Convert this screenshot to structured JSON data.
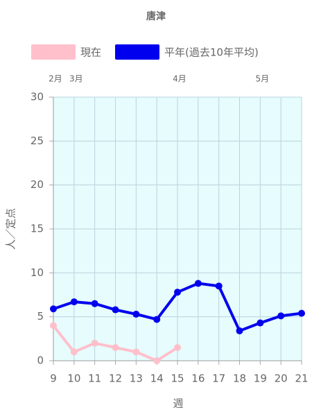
{
  "chart_data": {
    "type": "line",
    "title": "唐津",
    "x": [
      9,
      10,
      11,
      12,
      13,
      14,
      15,
      16,
      17,
      18,
      19,
      20,
      21
    ],
    "series": [
      {
        "name": "現在",
        "color": "#ffc0cb",
        "values": [
          4.0,
          1.0,
          2.0,
          1.5,
          1.0,
          0,
          1.5,
          null,
          null,
          null,
          null,
          null,
          null
        ]
      },
      {
        "name": "平年(過去10年平均)",
        "color": "#0000ee",
        "values": [
          5.9,
          6.7,
          6.5,
          5.8,
          5.3,
          4.7,
          7.8,
          8.8,
          8.5,
          3.4,
          4.3,
          5.1,
          5.4
        ]
      }
    ],
    "xlim": [
      9,
      21
    ],
    "xticks": [
      9,
      10,
      11,
      12,
      13,
      14,
      15,
      16,
      17,
      18,
      19,
      20,
      21
    ],
    "ylim": [
      0,
      30
    ],
    "yticks": [
      0,
      5,
      10,
      15,
      20,
      25,
      30
    ],
    "xlabel": "週",
    "ylabel": "人／定点",
    "month_labels": [
      {
        "x": 9,
        "label": "2月"
      },
      {
        "x": 10,
        "label": "3月"
      },
      {
        "x": 15,
        "label": "4月"
      },
      {
        "x": 19,
        "label": "5月"
      }
    ],
    "grid": true,
    "legend": "top"
  }
}
